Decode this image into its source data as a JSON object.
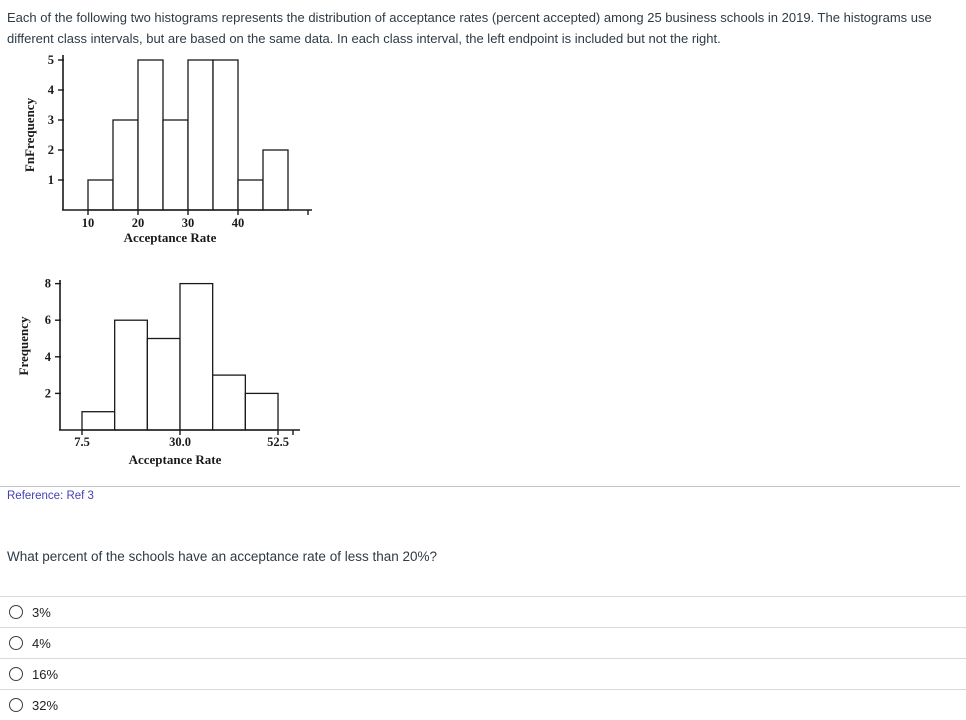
{
  "page": {
    "intro": "Each of the following two histograms represents the distribution of acceptance rates (percent accepted) among 25 business schools in 2019. The histograms use different class intervals, but are based on the same data. In each class interval, the left endpoint is included but not the right.",
    "reference_label": "Reference: Ref 3",
    "question": "What percent of the schools have an acceptance rate of less than 20%?",
    "options": [
      {
        "label": "3%",
        "selected": false
      },
      {
        "label": "4%",
        "selected": false
      },
      {
        "label": "16%",
        "selected": false
      },
      {
        "label": "32%",
        "selected": false
      }
    ],
    "colors": {
      "body_text": "#2d3b45",
      "reference_text": "#4341b3",
      "separator": "#d9d9d9",
      "chart_ink": "#1a1a1a",
      "bar_fill": "#ffffff"
    }
  },
  "chart_data": [
    {
      "type": "bar",
      "subtype": "histogram",
      "title": "",
      "xlabel": "Acceptance Rate",
      "ylabel": "FnFrequency",
      "bin_edges": [
        10,
        15,
        20,
        25,
        30,
        35,
        40,
        45,
        50
      ],
      "values": [
        1,
        3,
        5,
        3,
        5,
        5,
        1,
        2
      ],
      "x_ticks": [
        10,
        20,
        30,
        40
      ],
      "x_tick_labels": [
        "10",
        "20",
        "30",
        "40"
      ],
      "y_ticks": [
        1,
        2,
        3,
        4,
        5
      ],
      "ylim": [
        0,
        5
      ],
      "xlim": [
        5,
        54
      ],
      "total_count": 25,
      "grid": false,
      "legend": false
    },
    {
      "type": "bar",
      "subtype": "histogram",
      "title": "",
      "xlabel": "Acceptance Rate",
      "ylabel": "Frequency",
      "bin_edges": [
        7.5,
        15,
        22.5,
        30,
        37.5,
        45,
        52.5
      ],
      "values": [
        1,
        6,
        5,
        8,
        3,
        2
      ],
      "x_ticks": [
        7.5,
        30,
        52.5
      ],
      "x_tick_labels": [
        "7.5",
        "30.0",
        "52.5"
      ],
      "y_ticks": [
        2,
        4,
        6,
        8
      ],
      "ylim": [
        0,
        8
      ],
      "xlim": [
        2.5,
        57.5
      ],
      "total_count": 25,
      "grid": false,
      "legend": false
    }
  ]
}
